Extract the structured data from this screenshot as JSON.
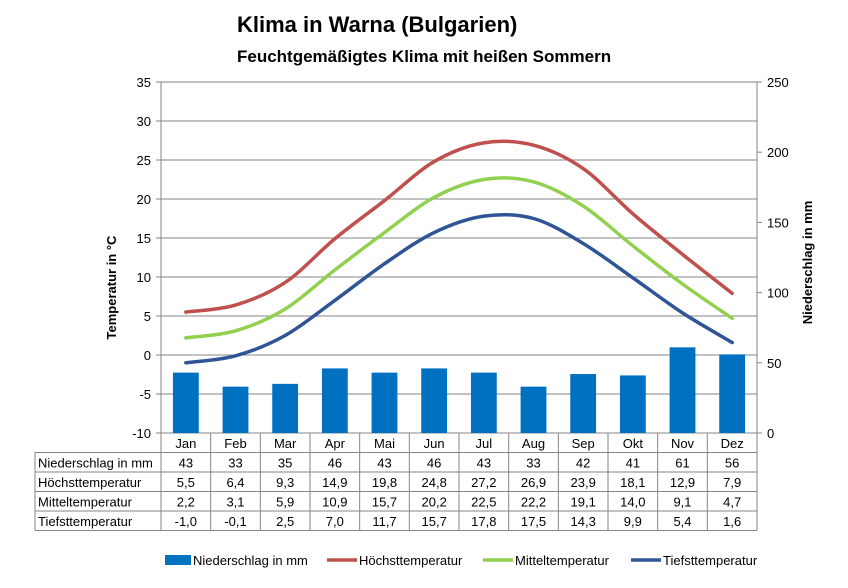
{
  "chart_data": {
    "type": "bar",
    "title": "Klima in Warna (Bulgarien)",
    "subtitle": "Feuchtgemäßigtes Klima mit heißen Sommern",
    "ylabel_left": "Temperatur in °C",
    "ylabel_right": "Niederschlag in mm",
    "ylim_left": [
      -10,
      35
    ],
    "yticks_left": [
      -10,
      -5,
      0,
      5,
      10,
      15,
      20,
      25,
      30,
      35
    ],
    "ylim_right": [
      0,
      250
    ],
    "yticks_right": [
      0,
      50,
      100,
      150,
      200,
      250
    ],
    "grid": "horizontal",
    "legend_position": "bottom",
    "categories": [
      "Jan",
      "Feb",
      "Mar",
      "Apr",
      "Mai",
      "Jun",
      "Jul",
      "Aug",
      "Sep",
      "Okt",
      "Nov",
      "Dez"
    ],
    "series": [
      {
        "name": "Niederschlag in mm",
        "type": "bar",
        "axis": "right",
        "color": "#0070C0",
        "values": [
          43,
          33,
          35,
          46,
          43,
          46,
          43,
          33,
          42,
          41,
          61,
          56
        ],
        "labels": [
          "43",
          "33",
          "35",
          "46",
          "43",
          "46",
          "43",
          "33",
          "42",
          "41",
          "61",
          "56"
        ]
      },
      {
        "name": "Höchsttemperatur",
        "type": "line",
        "axis": "left",
        "color": "#C0504D",
        "values": [
          5.5,
          6.4,
          9.3,
          14.9,
          19.8,
          24.8,
          27.2,
          26.9,
          23.9,
          18.1,
          12.9,
          7.9
        ],
        "labels": [
          "5,5",
          "6,4",
          "9,3",
          "14,9",
          "19,8",
          "24,8",
          "27,2",
          "26,9",
          "23,9",
          "18,1",
          "12,9",
          "7,9"
        ]
      },
      {
        "name": "Mitteltemperatur",
        "type": "line",
        "axis": "left",
        "color": "#92D050",
        "values": [
          2.2,
          3.1,
          5.9,
          10.9,
          15.7,
          20.2,
          22.5,
          22.2,
          19.1,
          14.0,
          9.1,
          4.7
        ],
        "labels": [
          "2,2",
          "3,1",
          "5,9",
          "10,9",
          "15,7",
          "20,2",
          "22,5",
          "22,2",
          "19,1",
          "14,0",
          "9,1",
          "4,7"
        ]
      },
      {
        "name": "Tiefsttemperatur",
        "type": "line",
        "axis": "left",
        "color": "#2F5597",
        "values": [
          -1.0,
          -0.1,
          2.5,
          7.0,
          11.7,
          15.7,
          17.8,
          17.5,
          14.3,
          9.9,
          5.4,
          1.6
        ],
        "labels": [
          "-1,0",
          "-0,1",
          "2,5",
          "7,0",
          "11,7",
          "15,7",
          "17,8",
          "17,5",
          "14,3",
          "9,9",
          "5,4",
          "1,6"
        ]
      }
    ]
  }
}
